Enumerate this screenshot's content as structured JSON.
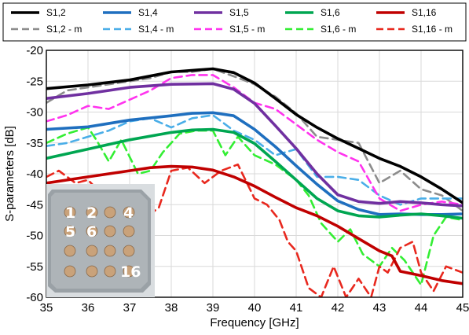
{
  "chart_data": {
    "type": "line",
    "title": "",
    "xlabel": "Frequency [GHz]",
    "ylabel": "S-parameters [dB]",
    "xlim": [
      35,
      45
    ],
    "ylim": [
      -60,
      -20
    ],
    "xticks": [
      "35",
      "36",
      "37",
      "38",
      "39",
      "40",
      "41",
      "42",
      "43",
      "44",
      "45"
    ],
    "yticks": [
      "-20",
      "-25",
      "-30",
      "-35",
      "-40",
      "-45",
      "-50",
      "-55",
      "-60"
    ],
    "grid": true,
    "legend_position": "top",
    "series": [
      {
        "name": "S1,2",
        "color": "#000000",
        "dash": "solid",
        "x": [
          35,
          36,
          37,
          38,
          39,
          39.5,
          40,
          40.5,
          41,
          41.5,
          42,
          42.5,
          43,
          43.5,
          44,
          44.5,
          45
        ],
        "y": [
          -26.2,
          -25.6,
          -24.8,
          -23.5,
          -23.0,
          -23.6,
          -25.3,
          -27.8,
          -30.4,
          -32.5,
          -34.3,
          -35.9,
          -37.5,
          -38.8,
          -40.5,
          -42.5,
          -44.7
        ]
      },
      {
        "name": "S1,2 - m",
        "color": "#8c8c8c",
        "dash": "dashed",
        "x": [
          35,
          35.5,
          36,
          36.5,
          37,
          37.5,
          38,
          38.5,
          39,
          39.5,
          40,
          40.5,
          41,
          41.5,
          42,
          42.5,
          43,
          43.5,
          44,
          44.5,
          45
        ],
        "y": [
          -28.5,
          -26.5,
          -26.0,
          -25.5,
          -25.0,
          -24.5,
          -23.5,
          -23.5,
          -23.0,
          -24.2,
          -25.5,
          -27.5,
          -30.2,
          -34.0,
          -34.5,
          -35.0,
          -41.5,
          -39.5,
          -42.5,
          -43.5,
          -46.0
        ]
      },
      {
        "name": "S1,4",
        "color": "#1f6fbf",
        "dash": "solid",
        "x": [
          35,
          36,
          37,
          38,
          38.5,
          39,
          39.5,
          40,
          40.5,
          41,
          41.5,
          42,
          42.5,
          43,
          43.5,
          44,
          44.5,
          45
        ],
        "y": [
          -32.8,
          -32.4,
          -31.3,
          -30.6,
          -30.2,
          -30.1,
          -30.6,
          -32.8,
          -35.6,
          -38.7,
          -41.7,
          -44.4,
          -45.8,
          -46.6,
          -46.5,
          -46.6,
          -46.6,
          -46.5
        ]
      },
      {
        "name": "S1,4 - m",
        "color": "#4aaee8",
        "dash": "dashed",
        "x": [
          35,
          35.5,
          36,
          36.5,
          37,
          37.5,
          38,
          38.5,
          39,
          39.5,
          40,
          40.5,
          41,
          41.5,
          42,
          42.5,
          43,
          43.5,
          44,
          44.5,
          45
        ],
        "y": [
          -35.5,
          -35.0,
          -34.0,
          -33.0,
          -31.5,
          -31.0,
          -32.5,
          -31.0,
          -30.5,
          -33.0,
          -34.5,
          -37.0,
          -36.0,
          -40.5,
          -40.5,
          -41.0,
          -43.5,
          -45.0,
          -44.0,
          -44.0,
          -44.0
        ]
      },
      {
        "name": "S1,5",
        "color": "#7030a0",
        "dash": "solid",
        "x": [
          35,
          36,
          37,
          38,
          39,
          39.5,
          40,
          40.5,
          41,
          41.5,
          42,
          42.5,
          43,
          43.5,
          44,
          44.5,
          45
        ],
        "y": [
          -27.8,
          -27.0,
          -26.0,
          -25.5,
          -25.4,
          -26.3,
          -28.6,
          -32.2,
          -35.9,
          -40.0,
          -43.4,
          -44.5,
          -44.8,
          -44.5,
          -44.7,
          -45.0,
          -45.2
        ]
      },
      {
        "name": "S1,5 - m",
        "color": "#ff33ee",
        "dash": "dashed",
        "x": [
          35,
          35.5,
          36,
          36.5,
          37,
          37.5,
          38,
          38.5,
          39,
          39.5,
          40,
          40.5,
          41,
          41.5,
          42,
          42.5,
          43,
          43.5,
          44,
          44.5,
          45
        ],
        "y": [
          -31.5,
          -30.5,
          -29.0,
          -29.5,
          -28.0,
          -26.5,
          -24.5,
          -24.0,
          -24.0,
          -26.0,
          -28.5,
          -29.5,
          -32.0,
          -34.5,
          -36.5,
          -38.0,
          -44.0,
          -46.0,
          -45.0,
          -44.5,
          -45.0
        ]
      },
      {
        "name": "S1,6",
        "color": "#00a651",
        "dash": "solid",
        "x": [
          35,
          36,
          37,
          38,
          38.5,
          39,
          39.5,
          40,
          40.5,
          41,
          41.5,
          42,
          42.5,
          43,
          43.5,
          44,
          44.5,
          45
        ],
        "y": [
          -37.5,
          -36.0,
          -34.5,
          -33.3,
          -32.9,
          -32.8,
          -33.3,
          -35.1,
          -38.0,
          -41.0,
          -44.0,
          -46.0,
          -46.8,
          -47.0,
          -46.7,
          -46.5,
          -46.8,
          -47.2
        ]
      },
      {
        "name": "S1,6 - m",
        "color": "#33ee33",
        "dash": "dashed",
        "x": [
          35,
          35.5,
          36,
          36.2,
          36.5,
          36.8,
          37.2,
          37.5,
          37.8,
          38.2,
          38.6,
          39,
          39.3,
          39.6,
          40,
          40.5,
          41,
          41.3,
          41.6,
          42,
          42.3,
          42.6,
          43,
          43.3,
          43.6,
          44,
          44.3,
          44.6,
          45
        ],
        "y": [
          -35.0,
          -33.5,
          -32.5,
          -34.5,
          -38.0,
          -34.5,
          -40.0,
          -39.5,
          -36.5,
          -33.5,
          -33.0,
          -33.0,
          -37.0,
          -34.0,
          -37.0,
          -38.5,
          -41.0,
          -43.5,
          -48.0,
          -51.0,
          -49.0,
          -53.0,
          -55.0,
          -52.0,
          -54.0,
          -58.0,
          -50.0,
          -47.0,
          -47.5
        ]
      },
      {
        "name": "S1,16",
        "color": "#c00000",
        "dash": "solid",
        "x": [
          35,
          36,
          37,
          37.5,
          38,
          38.5,
          39,
          39.5,
          40,
          40.5,
          41,
          41.5,
          42,
          42.5,
          43,
          43.3,
          43.5,
          44,
          44.5,
          45
        ],
        "y": [
          -41.5,
          -40.5,
          -39.5,
          -39.0,
          -38.8,
          -38.9,
          -39.4,
          -40.5,
          -42.0,
          -43.8,
          -45.5,
          -46.8,
          -48.5,
          -50.5,
          -52.5,
          -53.3,
          -55.8,
          -56.5,
          -57.3,
          -57.8
        ]
      },
      {
        "name": "S1,16 - m",
        "color": "#e8281e",
        "dash": "dashed",
        "x": [
          35,
          35.3,
          35.7,
          36,
          36.5,
          37,
          37.4,
          37.7,
          38,
          38.4,
          38.8,
          39.2,
          39.6,
          40,
          40.3,
          40.6,
          40.8,
          41,
          41.3,
          41.6,
          41.9,
          42.2,
          42.5,
          42.8,
          43,
          43.2,
          43.5,
          43.8,
          44.0,
          44.3,
          44.6,
          45
        ],
        "y": [
          -40.5,
          -39.5,
          -41.5,
          -41.0,
          -44.5,
          -47.5,
          -47.0,
          -45.5,
          -39.5,
          -39.0,
          -41.5,
          -39.5,
          -38.5,
          -44.0,
          -45.0,
          -47.5,
          -51.0,
          -52.5,
          -58.5,
          -60.0,
          -55.0,
          -60.0,
          -57.0,
          -60.0,
          -55.0,
          -56.0,
          -52.0,
          -51.0,
          -56.0,
          -59.0,
          -55.0,
          -56.0
        ]
      }
    ]
  },
  "inset": {
    "numbers": [
      "1",
      "2",
      "4",
      "5",
      "6",
      "16"
    ]
  }
}
